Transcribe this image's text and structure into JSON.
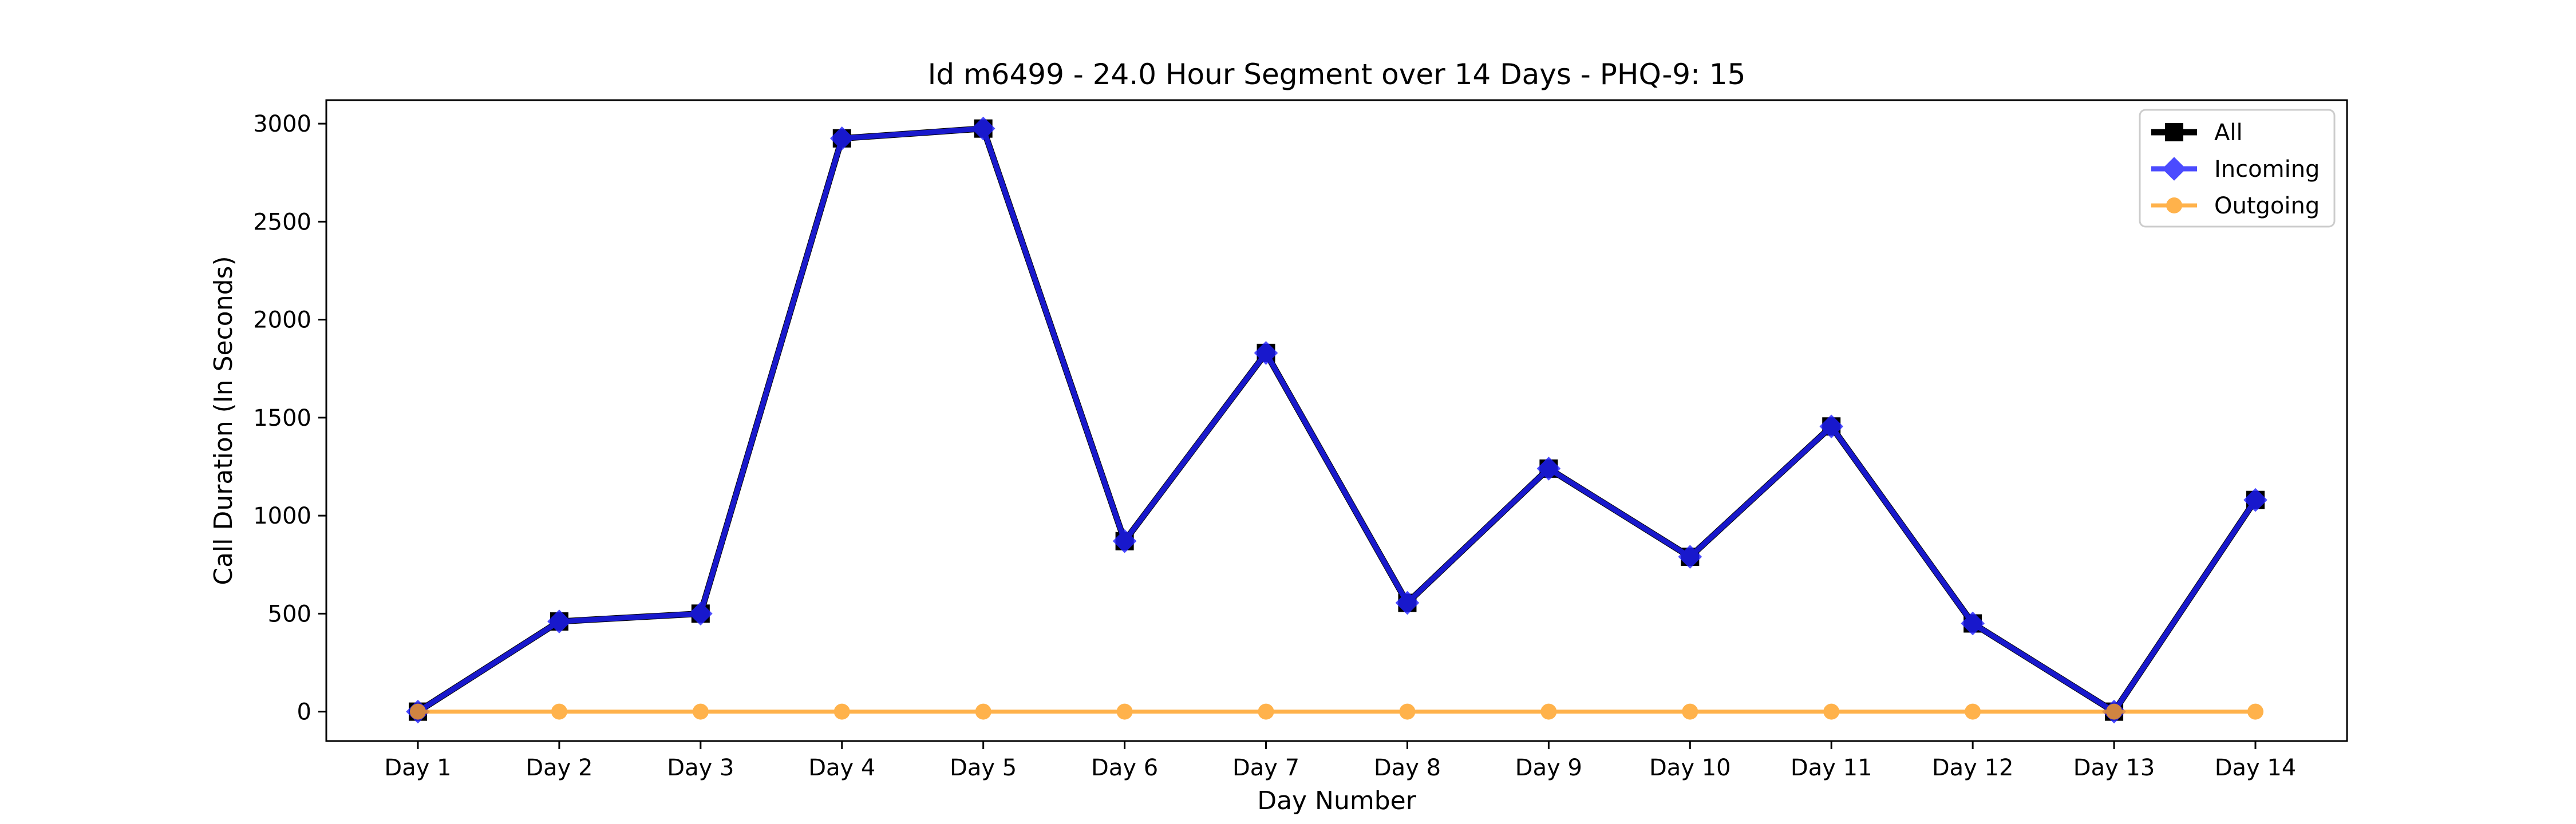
{
  "chart_data": {
    "type": "line",
    "title": "Id m6499 - 24.0 Hour Segment over 14 Days - PHQ-9: 15",
    "xlabel": "Day Number",
    "ylabel": "Call Duration (In Seconds)",
    "categories": [
      "Day 1",
      "Day 2",
      "Day 3",
      "Day 4",
      "Day 5",
      "Day 6",
      "Day 7",
      "Day 8",
      "Day 9",
      "Day 10",
      "Day 11",
      "Day 12",
      "Day 13",
      "Day 14"
    ],
    "ylim": [
      -150,
      3120
    ],
    "yticks": [
      0,
      500,
      1000,
      1500,
      2000,
      2500,
      3000
    ],
    "grid": false,
    "legend_position": "top-right",
    "series": [
      {
        "name": "All",
        "color": "#000000",
        "marker": "square",
        "values": [
          0,
          460,
          500,
          2925,
          2975,
          870,
          1830,
          555,
          1240,
          790,
          1455,
          450,
          0,
          1080
        ]
      },
      {
        "name": "Incoming",
        "color": "#1f1fff",
        "marker": "diamond",
        "values": [
          0,
          460,
          500,
          2925,
          2975,
          870,
          1830,
          555,
          1240,
          790,
          1455,
          450,
          0,
          1080
        ]
      },
      {
        "name": "Outgoing",
        "color": "#ff9f1f",
        "marker": "circle",
        "values": [
          0,
          0,
          0,
          0,
          0,
          0,
          0,
          0,
          0,
          0,
          0,
          0,
          0,
          0
        ]
      }
    ]
  }
}
